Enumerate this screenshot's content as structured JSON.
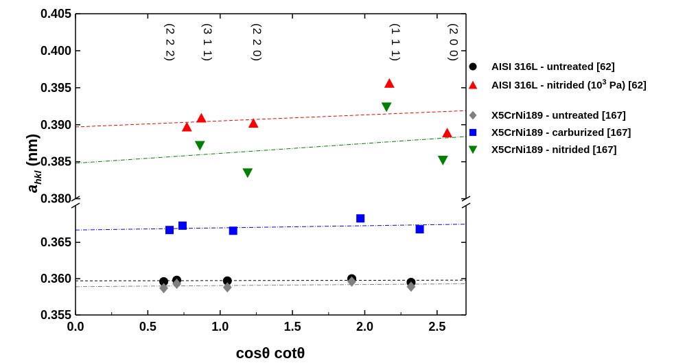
{
  "chart_data": {
    "type": "scatter",
    "xlabel": "cosθ cotθ",
    "ylabel_main": "a",
    "ylabel_sub": "hkl",
    "ylabel_unit": " (nm)",
    "xlim": [
      0.0,
      2.7
    ],
    "ylim_lower": [
      0.355,
      0.3705
    ],
    "ylim_upper": [
      0.3795,
      0.405
    ],
    "x_ticks": [
      "0.0",
      "0.5",
      "1.0",
      "1.5",
      "2.0",
      "2.5"
    ],
    "x_tick_values": [
      0.0,
      0.5,
      1.0,
      1.5,
      2.0,
      2.5
    ],
    "y_ticks_upper": [
      "0.380",
      "0.385",
      "0.390",
      "0.395",
      "0.400",
      "0.405"
    ],
    "y_tick_values_upper": [
      0.38,
      0.385,
      0.39,
      0.395,
      0.4,
      0.405
    ],
    "y_ticks_lower": [
      "0.355",
      "0.360",
      "0.365"
    ],
    "y_tick_values_lower": [
      0.355,
      0.36,
      0.365
    ],
    "axis_break": true,
    "legend_position": "right",
    "hkl_labels": [
      {
        "text": "(2 2 2)",
        "x": 0.6
      },
      {
        "text": "(3 1 1)",
        "x": 0.86
      },
      {
        "text": "(2 2 0)",
        "x": 1.2
      },
      {
        "text": "(1 1 1)",
        "x": 2.16
      },
      {
        "text": "(2 0 0)",
        "x": 2.56
      }
    ],
    "series": [
      {
        "name": "AISI 316L - untreated [62]",
        "marker": "circle",
        "color": "#000000",
        "x": [
          0.61,
          0.7,
          1.05,
          1.91,
          2.32
        ],
        "y": [
          0.3596,
          0.3598,
          0.3597,
          0.36,
          0.3595
        ],
        "fit": {
          "y0": 0.3597,
          "y1": 0.3598,
          "dash": "4,3"
        }
      },
      {
        "name_parts": [
          "AISI 316L - nitrided (10",
          "3",
          " Pa) [62]"
        ],
        "marker": "triangle-up",
        "color": "#ff0000",
        "x": [
          0.77,
          0.87,
          1.23,
          2.17,
          2.57
        ],
        "y": [
          0.3897,
          0.3909,
          0.3902,
          0.3956,
          0.3889
        ],
        "fit": {
          "y0": 0.3897,
          "y1": 0.3919,
          "dash": "5,3"
        }
      },
      {
        "name": "X5CrNi189 - untreated [167]",
        "marker": "diamond",
        "color": "#808080",
        "x": [
          0.61,
          0.7,
          1.05,
          1.91,
          2.32
        ],
        "y": [
          0.3587,
          0.3593,
          0.3588,
          0.3596,
          0.3589
        ],
        "fit": {
          "y0": 0.3589,
          "y1": 0.3593,
          "dash": "6,2,1,2"
        }
      },
      {
        "name": "X5CrNi189 - carburized [167]",
        "marker": "square",
        "color": "#0000ff",
        "x": [
          0.65,
          0.74,
          1.09,
          1.97,
          2.38
        ],
        "y": [
          0.3667,
          0.3673,
          0.3666,
          0.3683,
          0.3668
        ],
        "fit": {
          "y0": 0.3667,
          "y1": 0.3675,
          "dash": "6,2,1,2"
        }
      },
      {
        "name": "X5CrNi189 - nitrided [167]",
        "marker": "triangle-down",
        "color": "#008000",
        "x": [
          0.86,
          1.19,
          2.15,
          2.54
        ],
        "y": [
          0.3872,
          0.3835,
          0.3924,
          0.3852
        ],
        "fit": {
          "y0": 0.3848,
          "y1": 0.3884,
          "dash": "6,2,1,2"
        }
      }
    ]
  }
}
